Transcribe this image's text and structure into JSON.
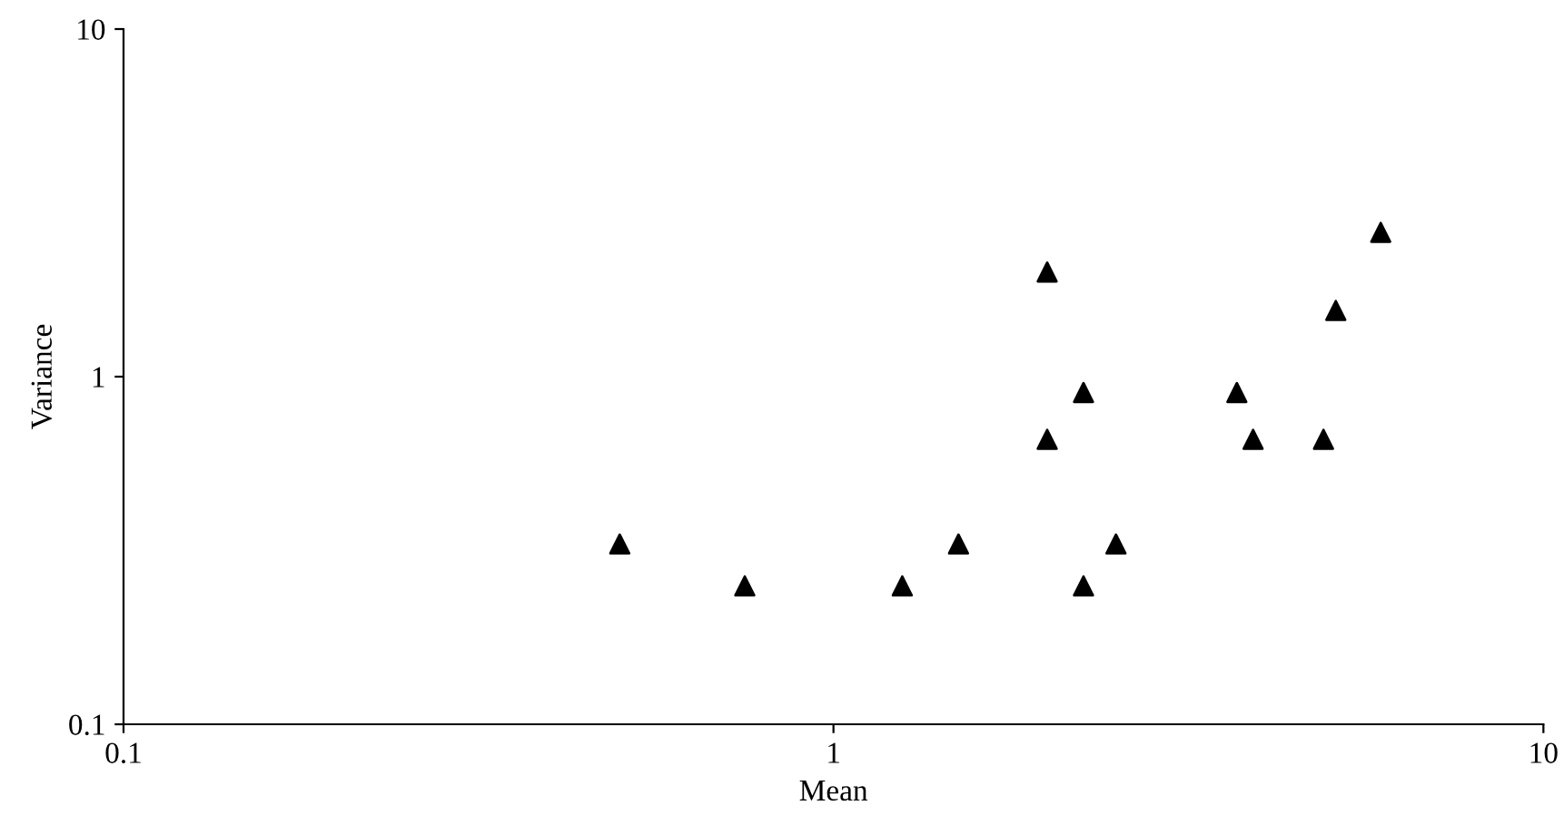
{
  "chart_data": {
    "type": "scatter",
    "xlabel": "Mean",
    "ylabel": "Variance",
    "log": "xy",
    "x": [
      0.5,
      0.75,
      1.25,
      1.5,
      2,
      2,
      2.25,
      2.25,
      2.5,
      3.7,
      3.9,
      4.9,
      5.1,
      5.9
    ],
    "values": [
      0.33,
      0.25,
      0.25,
      0.33,
      2.0,
      0.66,
      0.9,
      0.25,
      0.33,
      0.9,
      0.66,
      0.66,
      1.55,
      2.6
    ],
    "color": "#000000",
    "marker": "triangle",
    "grid": false,
    "xlim": [
      0.1,
      10
    ],
    "ylim": [
      0.1,
      10
    ],
    "xticks": [
      0.1,
      1,
      10
    ],
    "yticks": [
      0.1,
      1,
      10
    ]
  }
}
